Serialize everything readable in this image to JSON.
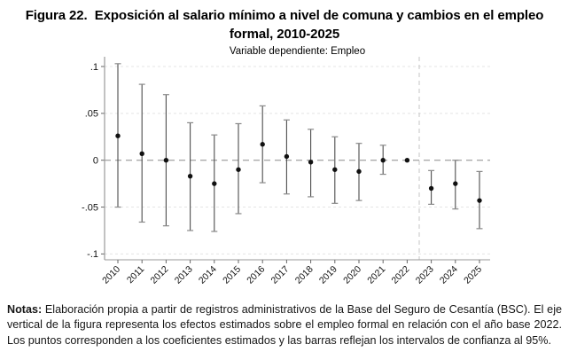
{
  "figure": {
    "title": "Figura 22.  Exposición al salario mínimo a nivel de comuna y cambios en el empleo formal, 2010-2025"
  },
  "chart_data": {
    "type": "scatter",
    "subtype": "coefficient-plot-with-95ci",
    "subtitle": "Variable dependiente: Empleo",
    "xlabel": "",
    "ylabel": "",
    "ylim": [
      -0.1,
      0.1
    ],
    "yticks": [
      ".1",
      ".05",
      "0",
      "-.05",
      "-.1"
    ],
    "ytick_values": [
      0.1,
      0.05,
      0,
      -0.05,
      -0.1
    ],
    "grid": "horizontal-dashed",
    "zero_line_dashed": true,
    "baseline_year": "2022",
    "vline_between": [
      "2022",
      "2023"
    ],
    "points": [
      {
        "year": "2010",
        "coef": 0.026,
        "ci_low": -0.05,
        "ci_high": 0.103
      },
      {
        "year": "2011",
        "coef": 0.007,
        "ci_low": -0.066,
        "ci_high": 0.081
      },
      {
        "year": "2012",
        "coef": 0.0,
        "ci_low": -0.07,
        "ci_high": 0.07
      },
      {
        "year": "2013",
        "coef": -0.017,
        "ci_low": -0.075,
        "ci_high": 0.04
      },
      {
        "year": "2014",
        "coef": -0.025,
        "ci_low": -0.076,
        "ci_high": 0.027
      },
      {
        "year": "2015",
        "coef": -0.01,
        "ci_low": -0.057,
        "ci_high": 0.039
      },
      {
        "year": "2016",
        "coef": 0.017,
        "ci_low": -0.024,
        "ci_high": 0.058
      },
      {
        "year": "2017",
        "coef": 0.004,
        "ci_low": -0.036,
        "ci_high": 0.043
      },
      {
        "year": "2018",
        "coef": -0.002,
        "ci_low": -0.039,
        "ci_high": 0.033
      },
      {
        "year": "2019",
        "coef": -0.01,
        "ci_low": -0.046,
        "ci_high": 0.025
      },
      {
        "year": "2020",
        "coef": -0.012,
        "ci_low": -0.043,
        "ci_high": 0.018
      },
      {
        "year": "2021",
        "coef": 0.0,
        "ci_low": -0.015,
        "ci_high": 0.016
      },
      {
        "year": "2022",
        "coef": 0.0,
        "ci_low": 0.0,
        "ci_high": 0.0
      },
      {
        "year": "2023",
        "coef": -0.03,
        "ci_low": -0.047,
        "ci_high": -0.011
      },
      {
        "year": "2024",
        "coef": -0.025,
        "ci_low": -0.052,
        "ci_high": 0.0
      },
      {
        "year": "2025",
        "coef": -0.043,
        "ci_low": -0.073,
        "ci_high": -0.012
      }
    ],
    "colors": {
      "point": "#111111",
      "ci_bar": "#4d4d4d",
      "ci_cap": "#8a8a8a",
      "grid": "#e4e4e4",
      "zero_line": "#8a8a8a",
      "vline": "#c4c4c4",
      "axis": "#9a9a9a",
      "tick": "#666666"
    }
  },
  "notes": {
    "label": "Notas:",
    "text": "Elaboración propia a partir de registros administrativos de la Base del Seguro de Cesantía (BSC). El eje vertical de la figura representa los efectos estimados sobre el empleo formal en relación con el año base 2022. Los puntos corresponden a los coeficientes estimados y las barras reflejan los intervalos de confianza al 95%."
  }
}
